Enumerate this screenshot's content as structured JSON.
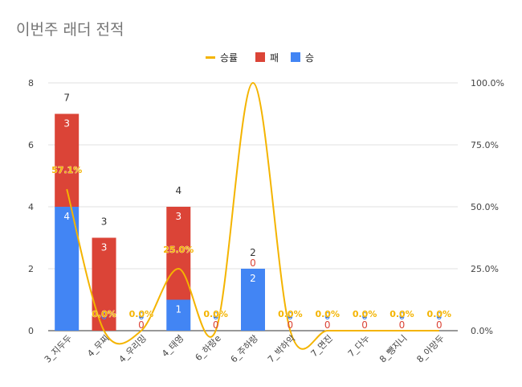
{
  "chart_data": {
    "type": "bar",
    "title": "이번주 래더 전적",
    "categories": [
      "3_지두두",
      "4_무찌",
      "4_우리밍",
      "4_태영",
      "6_하랑e",
      "6_주하랑",
      "7_박하악",
      "7_면진",
      "7_다누",
      "8_뺑지니",
      "8_아망두"
    ],
    "series": [
      {
        "name": "승",
        "type": "bar",
        "stack": "games",
        "color": "#4285f4",
        "values": [
          4,
          0,
          0,
          1,
          0,
          2,
          0,
          0,
          0,
          0,
          0
        ]
      },
      {
        "name": "패",
        "type": "bar",
        "stack": "games",
        "color": "#db4437",
        "values": [
          3,
          3,
          0,
          3,
          0,
          0,
          0,
          0,
          0,
          0,
          0
        ]
      },
      {
        "name": "승률",
        "type": "line",
        "axis": "right",
        "color": "#f4b400",
        "values": [
          57.1,
          0.0,
          0.0,
          25.0,
          0.0,
          100.0,
          0.0,
          0.0,
          0.0,
          0.0,
          0.0
        ]
      }
    ],
    "totals": [
      7,
      3,
      0,
      4,
      0,
      2,
      0,
      0,
      0,
      0,
      0
    ],
    "pct_labels": [
      "57.1%",
      "0.0%",
      "0.0%",
      "25.0%",
      "0.0%",
      "",
      "0.0%",
      "0.0%",
      "0.0%",
      "0.0%",
      "0.0%"
    ],
    "ylim": [
      0,
      8
    ],
    "yticks": [
      0,
      2,
      4,
      6,
      8
    ],
    "y2lim": [
      0,
      100
    ],
    "y2ticks": [
      "0.0%",
      "25.0%",
      "50.0%",
      "75.0%",
      "100.0%"
    ],
    "legend": {
      "position": "top",
      "items": [
        "승률",
        "패",
        "승"
      ]
    },
    "grid": true
  }
}
